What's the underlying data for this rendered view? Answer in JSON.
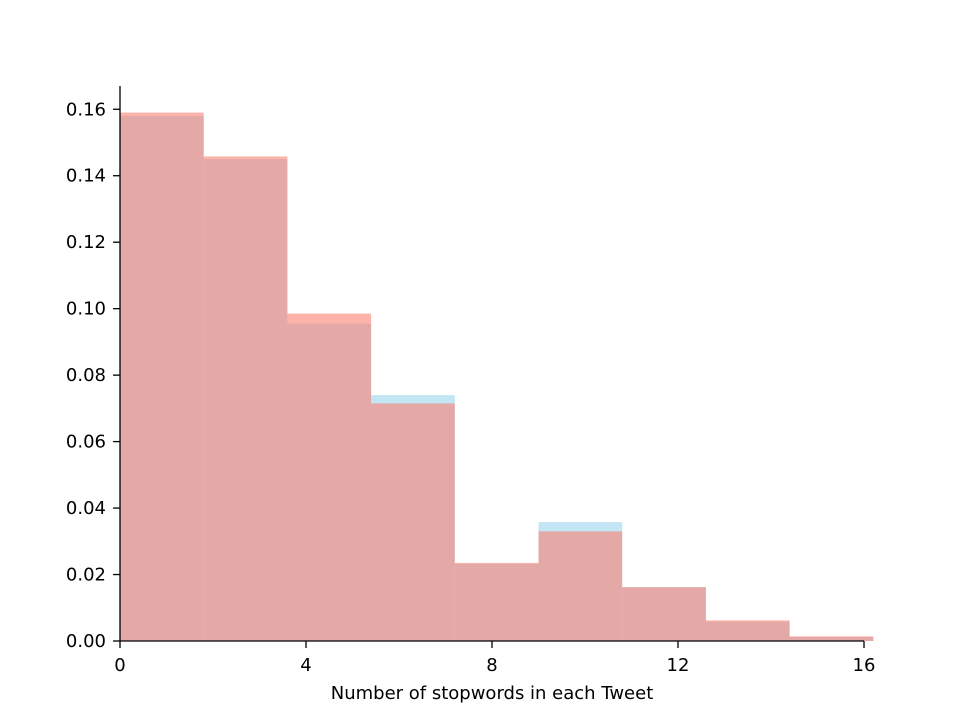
{
  "chart_data": {
    "type": "bar",
    "subtype": "overlaid-histogram",
    "title": "",
    "xlabel": "Number of stopwords in each Tweet",
    "ylabel": "",
    "xlim": [
      0,
      16
    ],
    "ylim": [
      0,
      0.167
    ],
    "xticks": [
      0,
      4,
      8,
      12,
      16
    ],
    "xtick_labels": [
      "0",
      "4",
      "8",
      "12",
      "16"
    ],
    "yticks": [
      0,
      0.02,
      0.04,
      0.06,
      0.08,
      0.1,
      0.12,
      0.14,
      0.16
    ],
    "ytick_labels": [
      "0.00",
      "0.02",
      "0.04",
      "0.06",
      "0.08",
      "0.10",
      "0.12",
      "0.14",
      "0.16"
    ],
    "bin_edges": [
      0,
      1.8,
      3.6,
      5.4,
      7.2,
      9.0,
      10.8,
      12.6,
      14.4,
      16.2
    ],
    "grid": false,
    "legend": "none",
    "series": [
      {
        "color": "#87ceeb",
        "alpha": 0.5,
        "values": [
          0.158,
          0.145,
          0.0955,
          0.074,
          0.0232,
          0.0358,
          0.0162,
          0.0058,
          0.0012
        ]
      },
      {
        "color": "#fa8072",
        "alpha": 0.6,
        "values": [
          0.159,
          0.1458,
          0.0985,
          0.0715,
          0.0235,
          0.033,
          0.0162,
          0.0062,
          0.0014
        ]
      }
    ]
  }
}
